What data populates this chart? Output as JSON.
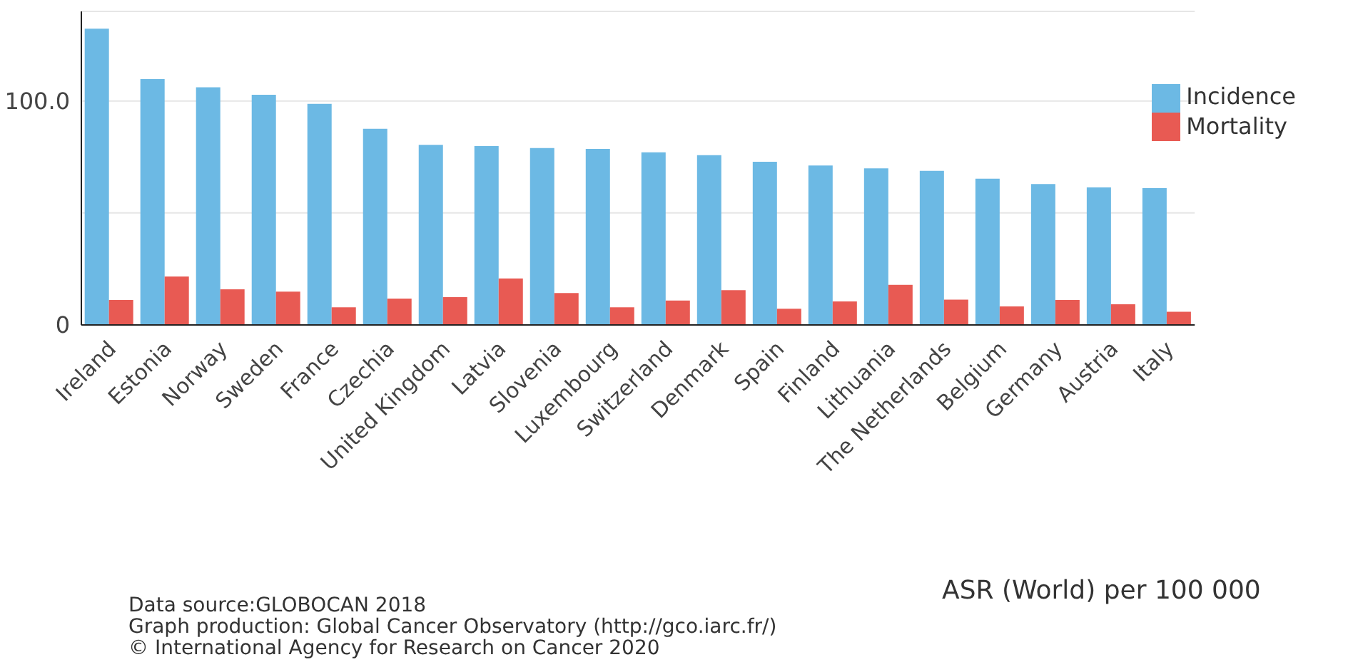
{
  "chart_data": {
    "type": "bar",
    "categories": [
      "Ireland",
      "Estonia",
      "Norway",
      "Sweden",
      "France",
      "Czechia",
      "United Kingdom",
      "Latvia",
      "Slovenia",
      "Luxembourg",
      "Switzerland",
      "Denmark",
      "Spain",
      "Finland",
      "Lithuania",
      "The Netherlands",
      "Belgium",
      "Germany",
      "Austria",
      "Italy"
    ],
    "series": [
      {
        "name": "Incidence",
        "color": "#6cb9e4",
        "values": [
          132.3,
          109.8,
          106.1,
          102.8,
          98.7,
          87.6,
          80.4,
          79.9,
          79.0,
          78.6,
          77.1,
          75.8,
          72.9,
          71.2,
          69.9,
          68.8,
          65.3,
          62.9,
          61.4,
          61.1
        ]
      },
      {
        "name": "Mortality",
        "color": "#e85a53",
        "values": [
          11.1,
          21.6,
          15.9,
          14.9,
          7.9,
          11.8,
          12.4,
          20.8,
          14.2,
          7.9,
          10.9,
          15.5,
          7.2,
          10.5,
          17.9,
          11.3,
          8.3,
          11.1,
          9.2,
          5.9
        ]
      }
    ],
    "ylim": [
      0,
      140
    ],
    "yticks": [
      0,
      {
        "value": 50,
        "label": null
      },
      {
        "value": 100,
        "label": "100.0"
      }
    ],
    "grid": "y",
    "legend": "top right",
    "annotations": [
      "ASR (World) per 100 000",
      "Data source:GLOBOCAN 2018",
      "Graph production: Global Cancer Observatory (http://gco.iarc.fr/)",
      "© International Agency for Research on Cancer 2020"
    ]
  }
}
